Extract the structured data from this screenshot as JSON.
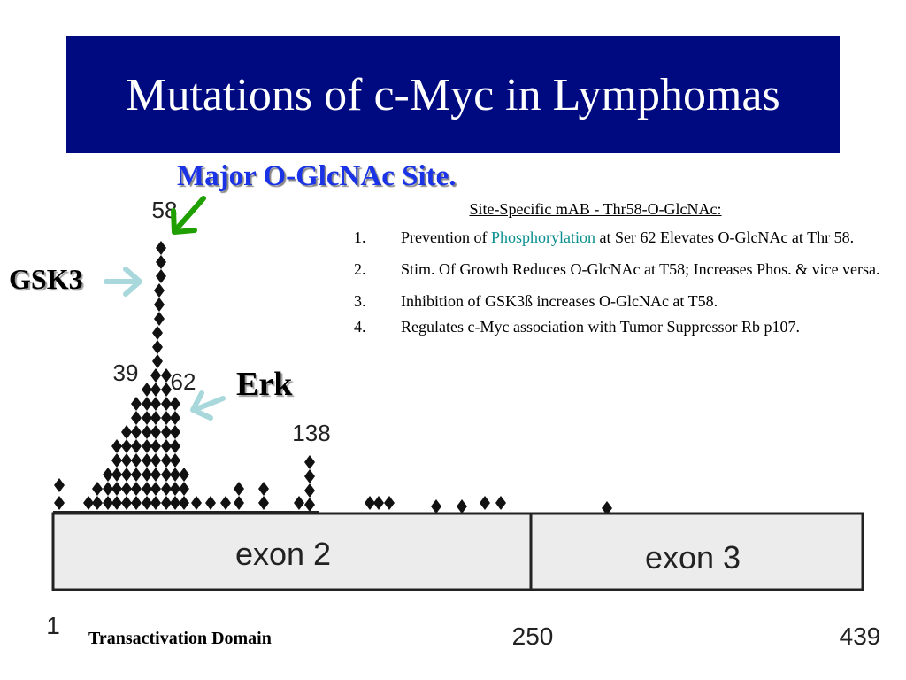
{
  "title": "Mutations of c-Myc in Lymphomas",
  "major_site": "Major O-GlcNAc Site.",
  "kinase_labels": {
    "gsk3": "GSK3",
    "erk": "Erk"
  },
  "position_labels": {
    "p58": "58",
    "p39": "39",
    "p62": "62",
    "p138": "138"
  },
  "axis_labels": {
    "start": "1",
    "mid": "250",
    "end": "439"
  },
  "exons": {
    "exon2": "exon 2",
    "exon3": "exon 3"
  },
  "domain_label": "Transactivation Domain",
  "info": {
    "heading": "Site-Specific mAB - Thr58-O-GlcNAc:",
    "items": [
      {
        "num": "1.",
        "pre": "Prevention of ",
        "highlight": "Phosphorylation",
        "post": " at Ser 62 Elevates O-GlcNAc at Thr 58."
      },
      {
        "num": "2.",
        "text": "Stim. Of  Growth Reduces O-GlcNAc at T58; Increases Phos. & vice versa."
      },
      {
        "num": "3.",
        "text": "Inhibition of GSK3ß increases O-GlcNAc at T58."
      },
      {
        "num": "4.",
        "text": "Regulates c-Myc association with Tumor Suppressor Rb p107."
      }
    ]
  },
  "colors": {
    "title_bg": "#000a80",
    "major_site": "#1a33e6",
    "arrow_green": "#1fa000",
    "arrow_cyan": "#a8d8dc",
    "highlight": "#0a8f8f"
  }
}
